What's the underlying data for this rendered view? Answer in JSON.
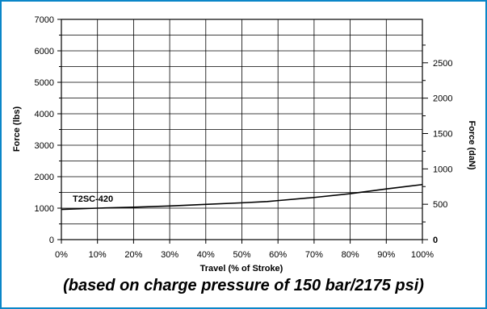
{
  "chart_data": {
    "type": "line",
    "xlabel": "Travel (% of Stroke)",
    "ylabel": "Force (lbs)",
    "y2label": "Force (daN)",
    "x_ticks": [
      "0%",
      "10%",
      "20%",
      "30%",
      "40%",
      "50%",
      "60%",
      "70%",
      "80%",
      "90%",
      "100%"
    ],
    "y_ticks": [
      "0",
      "1000",
      "2000",
      "3000",
      "4000",
      "5000",
      "6000",
      "7000"
    ],
    "y2_ticks": [
      "0",
      "500",
      "1000",
      "1500",
      "2000",
      "2500"
    ],
    "xlim": [
      0,
      100
    ],
    "ylim": [
      0,
      7000
    ],
    "y2lim": [
      0,
      3114
    ],
    "grid": true,
    "series": [
      {
        "name": "T2SC-420",
        "x": [
          0,
          10,
          20,
          30,
          40,
          50,
          57,
          60,
          70,
          80,
          90,
          100
        ],
        "y": [
          960,
          1000,
          1030,
          1070,
          1120,
          1170,
          1210,
          1240,
          1340,
          1460,
          1610,
          1750
        ]
      }
    ]
  },
  "caption": "(based on charge pressure of 150 bar/2175 psi)",
  "colors": {
    "border": "#0a86c8",
    "line": "#000000",
    "grid": "#000000"
  }
}
